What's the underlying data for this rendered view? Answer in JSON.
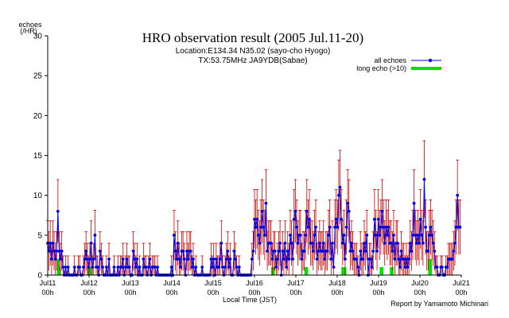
{
  "header": {
    "title": "HRO observation result (2005 Jul.11-20)",
    "location": "Location:E134.34 N35.02 (sayo-cho Hyogo)",
    "transmitter": "TX:53.75MHz JA9YDB(Sabae)"
  },
  "credit": "Report by Yamamoto Michinari",
  "colors": {
    "all_echoes": "#0000e0",
    "long_echo": "#00e000",
    "error_bars": "#cc0000",
    "axis": "#000000"
  },
  "chart_data": {
    "type": "line",
    "ylabel_line1": "echoes",
    "ylabel_line2": "(/HR)",
    "xlabel": "Local Time (JST)",
    "ylim": [
      0,
      30
    ],
    "yticks": [
      0,
      5,
      10,
      15,
      20,
      25,
      30
    ],
    "x_unit": "hours since Jul11 00h (JST)",
    "xlim": [
      0,
      240
    ],
    "xticks": [
      {
        "day": "Jul11",
        "time": "00h"
      },
      {
        "day": "Jul12",
        "time": "00h"
      },
      {
        "day": "Jul13",
        "time": "00h"
      },
      {
        "day": "Jul14",
        "time": "00h"
      },
      {
        "day": "Jul15",
        "time": "00h"
      },
      {
        "day": "Jul16",
        "time": "00h"
      },
      {
        "day": "Jul17",
        "time": "00h"
      },
      {
        "day": "Jul18",
        "time": "00h"
      },
      {
        "day": "Jul19",
        "time": "00h"
      },
      {
        "day": "Jul20",
        "time": "00h"
      },
      {
        "day": "Jul21",
        "time": "00h"
      }
    ],
    "legend": {
      "placement": "top-right",
      "entries": [
        {
          "label": "all echoes",
          "style": "line-with-dots"
        },
        {
          "label": "long echo (>10)",
          "style": "bar"
        }
      ]
    },
    "series": [
      {
        "name": "all echoes",
        "values": [
          4,
          3,
          4,
          2,
          4,
          3,
          2,
          3,
          8,
          3,
          2,
          3,
          1,
          0,
          1,
          0,
          1,
          0,
          0,
          0,
          0,
          1,
          0,
          0,
          1,
          1,
          0,
          0,
          1,
          2,
          3,
          2,
          1,
          2,
          4,
          1,
          2,
          5,
          1,
          1,
          0,
          3,
          2,
          1,
          0,
          0,
          1,
          0,
          2,
          0,
          0,
          0,
          1,
          0,
          0,
          1,
          0,
          1,
          1,
          2,
          0,
          1,
          2,
          1,
          1,
          0,
          0,
          3,
          2,
          1,
          2,
          0,
          1,
          0,
          0,
          2,
          1,
          1,
          0,
          1,
          2,
          0,
          1,
          1,
          1,
          0,
          1,
          0,
          0,
          0,
          0,
          0,
          0,
          0,
          0,
          0,
          0,
          1,
          0,
          5,
          3,
          2,
          4,
          2,
          1,
          3,
          3,
          2,
          0,
          3,
          2,
          3,
          3,
          1,
          2,
          0,
          1,
          0,
          0,
          0,
          0,
          1,
          0,
          0,
          0,
          0,
          0,
          0,
          2,
          1,
          2,
          0,
          2,
          1,
          1,
          2,
          4,
          1,
          0,
          1,
          2,
          3,
          1,
          2,
          0,
          0,
          3,
          2,
          1,
          0,
          1,
          0,
          0,
          0,
          0,
          0,
          0,
          0,
          0,
          0,
          2,
          3,
          7,
          6,
          7,
          5,
          4,
          6,
          8,
          6,
          5,
          9,
          3,
          4,
          4,
          4,
          2,
          3,
          3,
          1,
          2,
          3,
          4,
          0,
          3,
          2,
          4,
          1,
          3,
          2,
          5,
          4,
          2,
          7,
          8,
          6,
          4,
          5,
          5,
          2,
          3,
          3,
          5,
          8,
          6,
          7,
          4,
          4,
          3,
          5,
          6,
          2,
          3,
          4,
          3,
          3,
          4,
          2,
          3,
          3,
          5,
          6,
          2,
          4,
          1,
          6,
          7,
          6,
          10,
          11,
          7,
          4,
          5,
          2,
          6,
          9,
          8,
          3,
          4,
          3,
          2,
          2,
          2,
          1,
          0,
          3,
          2,
          2,
          4,
          3,
          5,
          0,
          2,
          2,
          1,
          3,
          7,
          5,
          3,
          7,
          5,
          6,
          8,
          6,
          4,
          6,
          5,
          6,
          4,
          4,
          3,
          5,
          2,
          4,
          4,
          2,
          1,
          3,
          2,
          2,
          1,
          2,
          1,
          2,
          4,
          3,
          5,
          9,
          5,
          4,
          5,
          4,
          7,
          5,
          4,
          12,
          6,
          3,
          3,
          5,
          6,
          5,
          4,
          3,
          1,
          1,
          0,
          0,
          1,
          1,
          0,
          0,
          1,
          1,
          2,
          2,
          2,
          2,
          3,
          4,
          6,
          10,
          6,
          6
        ]
      },
      {
        "name": "long echo (>10)",
        "values": [
          0,
          0,
          0,
          0,
          0,
          0,
          0,
          0,
          2,
          1,
          0,
          0,
          0,
          0,
          0,
          0,
          0,
          0,
          0,
          0,
          0,
          0,
          0,
          0,
          0,
          0,
          0,
          0,
          0,
          0,
          0,
          0,
          1,
          1,
          1,
          0,
          0,
          0,
          0,
          0,
          0,
          0,
          0,
          0,
          0,
          0,
          0,
          0,
          0,
          0,
          0,
          0,
          0,
          0,
          0,
          0,
          0,
          0,
          0,
          0,
          0,
          0,
          0,
          0,
          0,
          0,
          0,
          0,
          0,
          0,
          0,
          0,
          0,
          0,
          0,
          0,
          0,
          0,
          0,
          0,
          0,
          0,
          0,
          0,
          0,
          0,
          0,
          0,
          0,
          0,
          0,
          0,
          0,
          0,
          0,
          0,
          0,
          0,
          0,
          0,
          0,
          0,
          0,
          0,
          0,
          0,
          0,
          0,
          0,
          0,
          0,
          0,
          0,
          0,
          0,
          0,
          0,
          0,
          0,
          0,
          0,
          0,
          0,
          0,
          0,
          0,
          0,
          0,
          0,
          0,
          0,
          0,
          0,
          0,
          0,
          0,
          0,
          0,
          0,
          0,
          0,
          0,
          0,
          0,
          0,
          0,
          0,
          0,
          0,
          0,
          0,
          0,
          0,
          0,
          0,
          0,
          0,
          0,
          0,
          0,
          0,
          0,
          0,
          0,
          0,
          0,
          0,
          0,
          0,
          0,
          0,
          0,
          0,
          0,
          0,
          0,
          1,
          1,
          0,
          0,
          0,
          0,
          0,
          0,
          0,
          0,
          0,
          0,
          0,
          0,
          0,
          0,
          0,
          0,
          0,
          0,
          0,
          0,
          0,
          0,
          0,
          0,
          1,
          1,
          0,
          0,
          0,
          0,
          0,
          0,
          0,
          0,
          0,
          0,
          0,
          0,
          0,
          0,
          0,
          0,
          0,
          0,
          0,
          0,
          0,
          0,
          0,
          0,
          0,
          0,
          0,
          1,
          1,
          1,
          0,
          0,
          0,
          0,
          0,
          0,
          0,
          0,
          0,
          0,
          0,
          0,
          0,
          0,
          0,
          0,
          0,
          0,
          0,
          0,
          0,
          0,
          0,
          0,
          0,
          0,
          0,
          1,
          1,
          0,
          0,
          0,
          0,
          0,
          0,
          1,
          1,
          0,
          0,
          0,
          0,
          0,
          0,
          0,
          0,
          0,
          0,
          0,
          0,
          0,
          0,
          0,
          0,
          0,
          0,
          0,
          0,
          0,
          0,
          0,
          0,
          0,
          0,
          0,
          0,
          2,
          2,
          0,
          0,
          0,
          0,
          0,
          0,
          0,
          0,
          0,
          0,
          0,
          0,
          0,
          0,
          0,
          0,
          0,
          0,
          0,
          0,
          0,
          0,
          0,
          0,
          0,
          0,
          0,
          0,
          0,
          0,
          0,
          0,
          0,
          0
        ]
      }
    ],
    "error_bars": "sqrt"
  }
}
